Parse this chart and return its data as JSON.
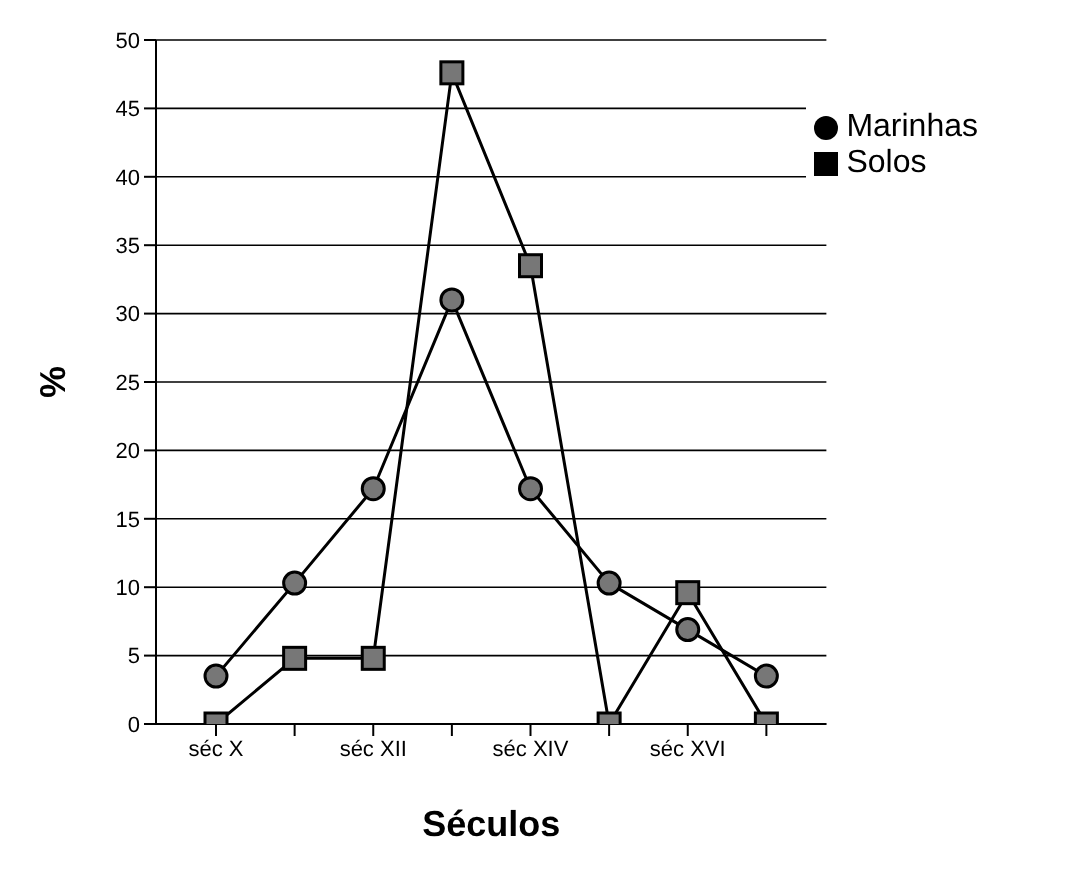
{
  "chart_data": {
    "type": "line",
    "xlabel": "Séculos",
    "ylabel": "%",
    "categories": [
      "séc X",
      null,
      "séc XII",
      null,
      "séc XIV",
      null,
      "séc XVI",
      null
    ],
    "series": [
      {
        "name": "Marinhas",
        "color": "#000000",
        "marker": "circle",
        "values": [
          3.5,
          10.3,
          17.2,
          31,
          17.2,
          10.3,
          6.9,
          3.5
        ]
      },
      {
        "name": "Solos",
        "color": "#000000",
        "marker": "square",
        "values": [
          0,
          4.8,
          4.8,
          47.6,
          33.5,
          0,
          9.6,
          0
        ]
      }
    ],
    "ylim": [
      0,
      50
    ],
    "yticks": [
      0,
      5,
      10,
      15,
      20,
      25,
      30,
      35,
      40,
      45,
      50
    ],
    "grid": "y",
    "legend": "top right",
    "line_style": "solid"
  }
}
